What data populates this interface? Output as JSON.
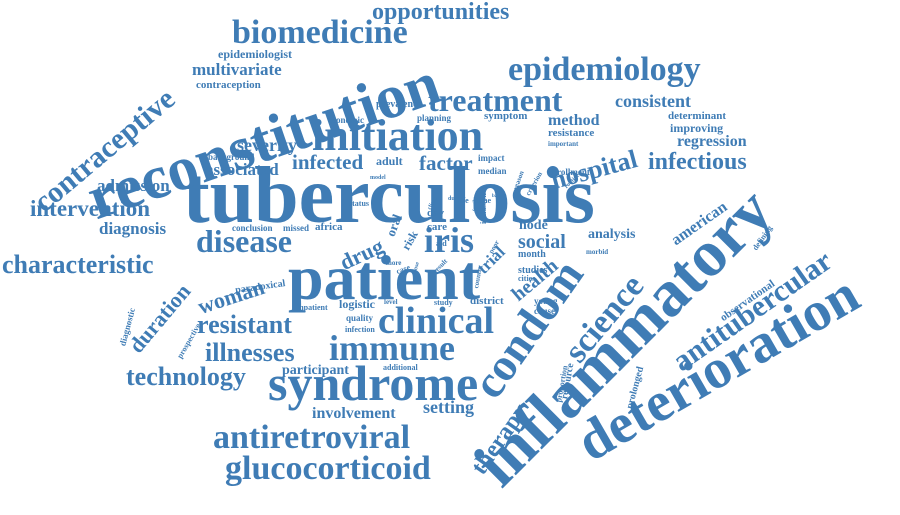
{
  "cloud": {
    "color": "#3f7cb5",
    "words": [
      {
        "text": "tuberculosis"
      },
      {
        "text": "reconstitution"
      },
      {
        "text": "inflammatory"
      },
      {
        "text": "patient"
      },
      {
        "text": "deterioration"
      },
      {
        "text": "syndrome"
      },
      {
        "text": "condom"
      },
      {
        "text": "initiation"
      },
      {
        "text": "epidemiology"
      },
      {
        "text": "biomedicine"
      },
      {
        "text": "treatment"
      },
      {
        "text": "antiretroviral"
      },
      {
        "text": "glucocorticoid"
      },
      {
        "text": "antitubercular"
      },
      {
        "text": "contraceptive"
      },
      {
        "text": "science"
      },
      {
        "text": "clinical"
      },
      {
        "text": "immune"
      },
      {
        "text": "disease"
      },
      {
        "text": "iris"
      },
      {
        "text": "hospital"
      },
      {
        "text": "infectious"
      },
      {
        "text": "technology"
      },
      {
        "text": "characteristic"
      },
      {
        "text": "intervention"
      },
      {
        "text": "resistant"
      },
      {
        "text": "illnesses"
      },
      {
        "text": "opportunities"
      },
      {
        "text": "therapy"
      },
      {
        "text": "multivariate"
      },
      {
        "text": "consistent"
      },
      {
        "text": "severity"
      },
      {
        "text": "infected"
      },
      {
        "text": "factor"
      },
      {
        "text": "associated"
      },
      {
        "text": "admission"
      },
      {
        "text": "diagnosis"
      },
      {
        "text": "duration"
      },
      {
        "text": "woman"
      },
      {
        "text": "social"
      },
      {
        "text": "health"
      },
      {
        "text": "drug"
      },
      {
        "text": "method"
      },
      {
        "text": "setting"
      },
      {
        "text": "involvement"
      },
      {
        "text": "participant"
      },
      {
        "text": "regression"
      },
      {
        "text": "american"
      },
      {
        "text": "trial"
      },
      {
        "text": "analysis"
      },
      {
        "text": "node"
      },
      {
        "text": "epidemiologist"
      },
      {
        "text": "contraception"
      },
      {
        "text": "improving"
      },
      {
        "text": "determinant"
      },
      {
        "text": "resistance"
      },
      {
        "text": "symptom"
      },
      {
        "text": "prevalence"
      },
      {
        "text": "economic"
      },
      {
        "text": "planning"
      },
      {
        "text": "background"
      },
      {
        "text": "adult"
      },
      {
        "text": "median"
      },
      {
        "text": "impact"
      },
      {
        "text": "enrollment"
      },
      {
        "text": "important"
      },
      {
        "text": "reason"
      },
      {
        "text": "conclusion"
      },
      {
        "text": "missed"
      },
      {
        "text": "africa"
      },
      {
        "text": "care"
      },
      {
        "text": "day"
      },
      {
        "text": "oral"
      },
      {
        "text": "risk"
      },
      {
        "text": "status"
      },
      {
        "text": "life"
      },
      {
        "text": "time"
      },
      {
        "text": "inclusion"
      },
      {
        "text": "month"
      },
      {
        "text": "studies"
      },
      {
        "text": "cities"
      },
      {
        "text": "young"
      },
      {
        "text": "cause"
      },
      {
        "text": "district"
      },
      {
        "text": "study"
      },
      {
        "text": "level"
      },
      {
        "text": "logistic"
      },
      {
        "text": "quality"
      },
      {
        "text": "infection"
      },
      {
        "text": "inpatient"
      },
      {
        "text": "paradoxical"
      },
      {
        "text": "prospective"
      },
      {
        "text": "diagnostic"
      },
      {
        "text": "additional"
      },
      {
        "text": "resource"
      },
      {
        "text": "proportion"
      },
      {
        "text": "prolonged"
      },
      {
        "text": "observational"
      },
      {
        "text": "defining"
      },
      {
        "text": "morbid"
      },
      {
        "text": "criterion"
      },
      {
        "text": "routine"
      },
      {
        "text": "result"
      },
      {
        "text": "more"
      },
      {
        "text": "model"
      },
      {
        "text": "aid"
      },
      {
        "text": "dual"
      },
      {
        "text": "clinic"
      },
      {
        "text": "basic"
      },
      {
        "text": "poor"
      },
      {
        "text": "country"
      },
      {
        "text": "family"
      },
      {
        "text": "case"
      },
      {
        "text": "dose"
      }
    ]
  }
}
